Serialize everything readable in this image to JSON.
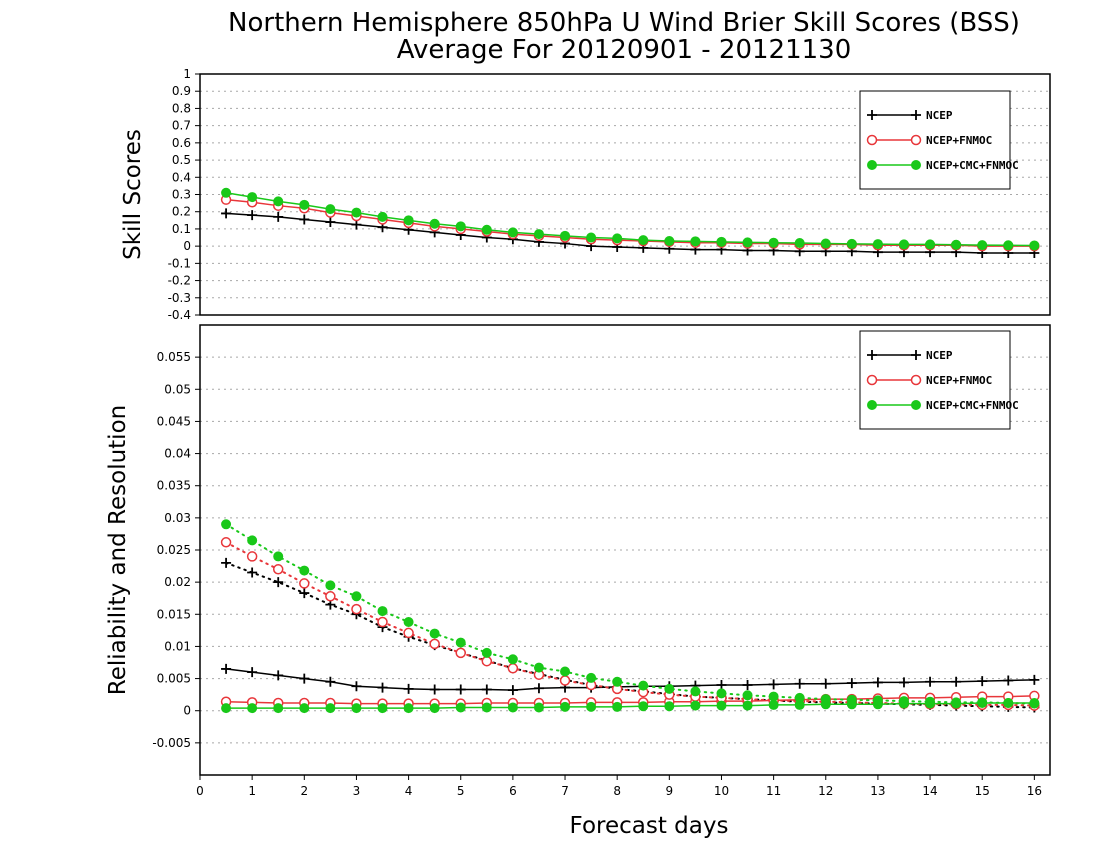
{
  "title_line1": "Northern Hemisphere 850hPa U Wind Brier Skill Scores (BSS)",
  "title_line2": "Average For 20120901 - 20121130",
  "colors": {
    "ncep": "#000000",
    "ncep_fnmoc": "#e8363a",
    "ncep_cmc_fnmoc": "#19c819"
  },
  "chart_data": [
    {
      "type": "line",
      "ylabel": "Skill Scores",
      "ylim": [
        -0.4,
        1.0
      ],
      "xlim": [
        0,
        16.3
      ],
      "yticks": [
        "1",
        "0.9",
        "0.8",
        "0.7",
        "0.6",
        "0.5",
        "0.4",
        "0.3",
        "0.2",
        "0.1",
        "0",
        "-0.1",
        "-0.2",
        "-0.3",
        "-0.4"
      ],
      "grid": true,
      "legend_position": "top-right",
      "x": [
        0.5,
        1,
        1.5,
        2,
        2.5,
        3,
        3.5,
        4,
        4.5,
        5,
        5.5,
        6,
        6.5,
        7,
        7.5,
        8,
        8.5,
        9,
        9.5,
        10,
        10.5,
        11,
        11.5,
        12,
        12.5,
        13,
        13.5,
        14,
        14.5,
        15,
        15.5,
        16
      ],
      "series": [
        {
          "name": "NCEP",
          "marker": "plus",
          "line": "solid",
          "color_key": "ncep",
          "values": [
            0.19,
            0.18,
            0.17,
            0.155,
            0.14,
            0.125,
            0.11,
            0.095,
            0.08,
            0.065,
            0.05,
            0.04,
            0.025,
            0.015,
            0.0,
            -0.005,
            -0.01,
            -0.015,
            -0.02,
            -0.02,
            -0.025,
            -0.025,
            -0.03,
            -0.03,
            -0.03,
            -0.035,
            -0.035,
            -0.035,
            -0.035,
            -0.04,
            -0.04,
            -0.04
          ]
        },
        {
          "name": "NCEP+FNMOC",
          "marker": "open-circle",
          "line": "solid",
          "color_key": "ncep_fnmoc",
          "values": [
            0.27,
            0.255,
            0.235,
            0.22,
            0.195,
            0.175,
            0.155,
            0.135,
            0.115,
            0.1,
            0.085,
            0.07,
            0.06,
            0.05,
            0.04,
            0.035,
            0.03,
            0.025,
            0.02,
            0.02,
            0.015,
            0.015,
            0.01,
            0.01,
            0.01,
            0.005,
            0.005,
            0.005,
            0.005,
            0.0,
            0.0,
            0.0
          ]
        },
        {
          "name": "NCEP+CMC+FNMOC",
          "marker": "filled-circle",
          "line": "solid",
          "color_key": "ncep_cmc_fnmoc",
          "values": [
            0.31,
            0.285,
            0.26,
            0.24,
            0.215,
            0.195,
            0.17,
            0.15,
            0.13,
            0.115,
            0.095,
            0.08,
            0.07,
            0.06,
            0.05,
            0.045,
            0.035,
            0.03,
            0.028,
            0.025,
            0.022,
            0.02,
            0.018,
            0.015,
            0.013,
            0.012,
            0.01,
            0.01,
            0.008,
            0.006,
            0.005,
            0.004
          ]
        }
      ]
    },
    {
      "type": "line",
      "xlabel": "Forecast days",
      "ylabel": "Reliability and Resolution",
      "ylim": [
        -0.01,
        0.06
      ],
      "xlim": [
        0,
        16.3
      ],
      "xticks": [
        "0",
        "1",
        "2",
        "3",
        "4",
        "5",
        "6",
        "7",
        "8",
        "9",
        "10",
        "11",
        "12",
        "13",
        "14",
        "15",
        "16"
      ],
      "yticks": [
        "0.055",
        "0.05",
        "0.045",
        "0.04",
        "0.035",
        "0.03",
        "0.025",
        "0.02",
        "0.015",
        "0.01",
        "0.005",
        "0",
        "-0.005"
      ],
      "grid": true,
      "legend_position": "top-right",
      "x": [
        0.5,
        1,
        1.5,
        2,
        2.5,
        3,
        3.5,
        4,
        4.5,
        5,
        5.5,
        6,
        6.5,
        7,
        7.5,
        8,
        8.5,
        9,
        9.5,
        10,
        10.5,
        11,
        11.5,
        12,
        12.5,
        13,
        13.5,
        14,
        14.5,
        15,
        15.5,
        16
      ],
      "series": [
        {
          "name": "NCEP",
          "legend_label": "NCEP",
          "marker": "plus",
          "line": "solid",
          "color_key": "ncep",
          "metric": "reliability",
          "values": [
            0.0065,
            0.006,
            0.0055,
            0.005,
            0.0045,
            0.0038,
            0.0036,
            0.0034,
            0.0033,
            0.0033,
            0.0033,
            0.0032,
            0.0035,
            0.0036,
            0.0036,
            0.0037,
            0.0038,
            0.0038,
            0.0039,
            0.004,
            0.004,
            0.0041,
            0.0042,
            0.0042,
            0.0043,
            0.0044,
            0.0044,
            0.0045,
            0.0045,
            0.0046,
            0.0047,
            0.0048
          ]
        },
        {
          "name": "NCEP",
          "marker": "plus",
          "line": "dotted",
          "color_key": "ncep",
          "metric": "resolution",
          "values": [
            0.023,
            0.0215,
            0.02,
            0.0183,
            0.0165,
            0.015,
            0.013,
            0.0115,
            0.0102,
            0.009,
            0.0078,
            0.0066,
            0.0057,
            0.0048,
            0.004,
            0.0034,
            0.003,
            0.0026,
            0.0022,
            0.002,
            0.0018,
            0.0016,
            0.0014,
            0.0013,
            0.0012,
            0.0011,
            0.001,
            0.0009,
            0.0008,
            0.0007,
            0.0006,
            0.0005
          ]
        },
        {
          "name": "NCEP+FNMOC",
          "legend_label": "NCEP+FNMOC",
          "marker": "open-circle",
          "line": "solid",
          "color_key": "ncep_fnmoc",
          "metric": "reliability",
          "values": [
            0.0014,
            0.0013,
            0.0012,
            0.0012,
            0.0012,
            0.0011,
            0.0011,
            0.0011,
            0.0011,
            0.0011,
            0.0012,
            0.0012,
            0.0012,
            0.0012,
            0.0013,
            0.0013,
            0.0013,
            0.0014,
            0.0014,
            0.0015,
            0.0015,
            0.0016,
            0.0017,
            0.0018,
            0.0018,
            0.0019,
            0.002,
            0.002,
            0.0021,
            0.0022,
            0.0022,
            0.0023
          ]
        },
        {
          "name": "NCEP+FNMOC",
          "marker": "open-circle",
          "line": "dotted",
          "color_key": "ncep_fnmoc",
          "metric": "resolution",
          "values": [
            0.0262,
            0.024,
            0.022,
            0.0198,
            0.0178,
            0.0158,
            0.0138,
            0.0121,
            0.0104,
            0.009,
            0.0077,
            0.0066,
            0.0056,
            0.0047,
            0.004,
            0.0034,
            0.0029,
            0.0025,
            0.0022,
            0.002,
            0.0018,
            0.0016,
            0.0015,
            0.0014,
            0.0013,
            0.0012,
            0.0011,
            0.001,
            0.001,
            0.0009,
            0.0009,
            0.0008
          ]
        },
        {
          "name": "NCEP+CMC+FNMOC",
          "legend_label": "NCEP+CMC+FNMOC",
          "marker": "filled-circle",
          "line": "solid",
          "color_key": "ncep_cmc_fnmoc",
          "metric": "reliability",
          "values": [
            0.0004,
            0.0004,
            0.0004,
            0.0004,
            0.0004,
            0.0004,
            0.0004,
            0.0004,
            0.0004,
            0.0005,
            0.0005,
            0.0005,
            0.0005,
            0.0006,
            0.0006,
            0.0006,
            0.0007,
            0.0007,
            0.0008,
            0.0008,
            0.0008,
            0.0009,
            0.0009,
            0.001,
            0.001,
            0.001,
            0.0011,
            0.0011,
            0.0011,
            0.0012,
            0.0012,
            0.0012
          ]
        },
        {
          "name": "NCEP+CMC+FNMOC",
          "marker": "filled-circle",
          "line": "dotted",
          "color_key": "ncep_cmc_fnmoc",
          "metric": "resolution",
          "values": [
            0.029,
            0.0265,
            0.024,
            0.0218,
            0.0195,
            0.0178,
            0.0155,
            0.0138,
            0.012,
            0.0106,
            0.009,
            0.008,
            0.0067,
            0.0061,
            0.0051,
            0.0045,
            0.0039,
            0.0034,
            0.003,
            0.0027,
            0.0024,
            0.0022,
            0.002,
            0.0018,
            0.0017,
            0.0016,
            0.0015,
            0.0014,
            0.0013,
            0.0013,
            0.0012,
            0.0011
          ]
        }
      ]
    }
  ]
}
